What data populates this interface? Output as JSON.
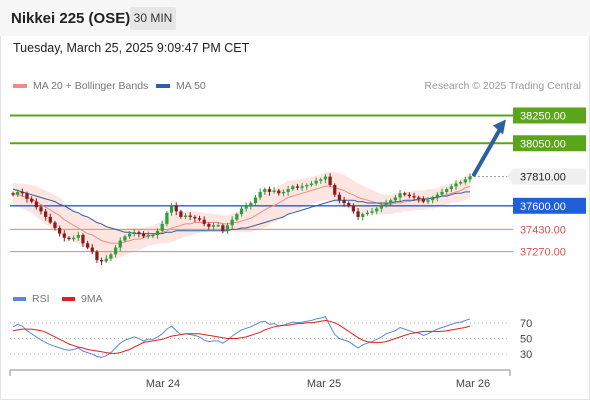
{
  "header": {
    "title": "Nikkei 225 (OSE)",
    "timeframe": "30 MIN",
    "timestamp": "Tuesday, March 25, 2025 9:09:47 PM CET"
  },
  "legend": {
    "ma20_label": "MA 20 + Bollinger Bands",
    "ma50_label": "MA 50",
    "credit": "Research © 2025 Trading Central"
  },
  "rsi_legend": {
    "rsi_label": "RSI",
    "ma9_label": "9MA"
  },
  "colors": {
    "ma20": "#f28b82",
    "ma50": "#2e5fa3",
    "bollinger_fill": "#fde0dd",
    "bull": "#2e9e3e",
    "bear": "#8b1a1a",
    "target": "#5ba51b",
    "pivot": "#1f5fd8",
    "support": "#f27d7d",
    "rsi": "#5b88d6",
    "rsi_ma": "#e02020"
  },
  "chart_data": [
    {
      "type": "candlestick",
      "title": "Nikkei 225 (OSE)",
      "timeframe": "30 MIN",
      "xlabel": "",
      "ylabel": "",
      "x_ticks": [
        "Mar 24",
        "Mar 25",
        "Mar 26"
      ],
      "ylim": [
        37095,
        38390
      ],
      "grid": false,
      "levels": [
        {
          "label": "38250.00",
          "value": 38250,
          "kind": "target"
        },
        {
          "label": "38050.00",
          "value": 38050,
          "kind": "target"
        },
        {
          "label": "37810.00",
          "value": 37810,
          "kind": "last"
        },
        {
          "label": "37600.00",
          "value": 37600,
          "kind": "pivot"
        },
        {
          "label": "37430.00",
          "value": 37430,
          "kind": "support"
        },
        {
          "label": "37270.00",
          "value": 37270,
          "kind": "support"
        }
      ],
      "closes": [
        37680,
        37700,
        37690,
        37650,
        37630,
        37590,
        37560,
        37520,
        37480,
        37440,
        37400,
        37370,
        37360,
        37370,
        37390,
        37330,
        37300,
        37270,
        37210,
        37200,
        37220,
        37250,
        37300,
        37350,
        37380,
        37400,
        37410,
        37400,
        37380,
        37390,
        37390,
        37420,
        37470,
        37550,
        37600,
        37560,
        37520,
        37530,
        37520,
        37510,
        37500,
        37470,
        37450,
        37460,
        37460,
        37420,
        37460,
        37500,
        37540,
        37580,
        37600,
        37620,
        37660,
        37700,
        37720,
        37700,
        37710,
        37690,
        37700,
        37720,
        37740,
        37730,
        37740,
        37750,
        37760,
        37780,
        37790,
        37810,
        37750,
        37680,
        37640,
        37620,
        37600,
        37560,
        37520,
        37540,
        37550,
        37560,
        37580,
        37600,
        37620,
        37640,
        37660,
        37690,
        37680,
        37670,
        37660,
        37650,
        37630,
        37640,
        37660,
        37680,
        37700,
        37720,
        37740,
        37760,
        37770,
        37790,
        37810
      ],
      "ma20": [
        37690,
        37680,
        37670,
        37660,
        37650,
        37630,
        37610,
        37590,
        37570,
        37550,
        37530,
        37500,
        37480,
        37460,
        37440,
        37420,
        37400,
        37390,
        37370,
        37350,
        37340,
        37330,
        37330,
        37330,
        37340,
        37350,
        37360,
        37360,
        37370,
        37380,
        37390,
        37400,
        37410,
        37420,
        37440,
        37450,
        37460,
        37470,
        37470,
        37480,
        37480,
        37480,
        37480,
        37480,
        37480,
        37470,
        37470,
        37480,
        37480,
        37490,
        37500,
        37510,
        37530,
        37550,
        37570,
        37590,
        37600,
        37620,
        37640,
        37660,
        37670,
        37680,
        37690,
        37700,
        37710,
        37720,
        37730,
        37740,
        37740,
        37730,
        37720,
        37710,
        37690,
        37680,
        37660,
        37650,
        37640,
        37630,
        37620,
        37610,
        37610,
        37610,
        37620,
        37620,
        37630,
        37630,
        37640,
        37640,
        37640,
        37650,
        37650,
        37660,
        37670,
        37680,
        37690,
        37700,
        37710,
        37730,
        37740
      ],
      "ma50": [
        37720,
        37710,
        37700,
        37690,
        37680,
        37670,
        37660,
        37650,
        37640,
        37630,
        37610,
        37600,
        37580,
        37560,
        37550,
        37530,
        37520,
        37500,
        37480,
        37470,
        37450,
        37440,
        37430,
        37420,
        37410,
        37410,
        37400,
        37400,
        37400,
        37400,
        37400,
        37400,
        37400,
        37410,
        37410,
        37420,
        37420,
        37420,
        37420,
        37420,
        37420,
        37420,
        37420,
        37420,
        37420,
        37420,
        37420,
        37430,
        37430,
        37440,
        37440,
        37450,
        37460,
        37470,
        37480,
        37490,
        37500,
        37510,
        37520,
        37540,
        37550,
        37560,
        37570,
        37580,
        37590,
        37600,
        37610,
        37620,
        37630,
        37640,
        37640,
        37640,
        37640,
        37640,
        37630,
        37630,
        37620,
        37620,
        37620,
        37620,
        37620,
        37620,
        37630,
        37630,
        37640,
        37640,
        37640,
        37650,
        37650,
        37650,
        37660,
        37660,
        37670,
        37670,
        37680,
        37690,
        37690,
        37700,
        37700
      ],
      "bollinger_width": [
        80,
        80,
        90,
        95,
        100,
        110,
        115,
        120,
        125,
        130,
        130,
        125,
        120,
        115,
        110,
        110,
        110,
        110,
        115,
        120,
        120,
        115,
        110,
        100,
        95,
        90,
        85,
        80,
        75,
        70,
        70,
        75,
        80,
        90,
        100,
        100,
        95,
        90,
        85,
        80,
        75,
        70,
        65,
        60,
        60,
        60,
        60,
        65,
        70,
        80,
        90,
        100,
        110,
        120,
        125,
        125,
        120,
        120,
        120,
        120,
        115,
        110,
        105,
        100,
        95,
        95,
        95,
        100,
        105,
        110,
        115,
        115,
        110,
        105,
        100,
        95,
        90,
        85,
        80,
        75,
        70,
        70,
        70,
        70,
        70,
        70,
        70,
        70,
        70,
        70,
        70,
        70,
        70,
        70,
        70,
        75,
        80,
        85,
        90
      ]
    },
    {
      "type": "line",
      "title": "RSI",
      "ylim": [
        20,
        80
      ],
      "y_ticks": [
        70,
        50,
        30
      ],
      "series": [
        {
          "name": "RSI",
          "values": [
            65,
            68,
            66,
            60,
            56,
            52,
            48,
            45,
            42,
            40,
            38,
            36,
            35,
            36,
            38,
            34,
            32,
            30,
            27,
            26,
            28,
            32,
            38,
            44,
            48,
            50,
            52,
            50,
            47,
            49,
            49,
            52,
            56,
            62,
            66,
            60,
            55,
            56,
            55,
            54,
            52,
            48,
            46,
            47,
            47,
            44,
            48,
            53,
            57,
            61,
            63,
            65,
            68,
            71,
            72,
            68,
            69,
            66,
            67,
            69,
            71,
            70,
            71,
            72,
            73,
            75,
            76,
            78,
            66,
            55,
            50,
            48,
            46,
            42,
            38,
            42,
            44,
            46,
            49,
            52,
            56,
            58,
            60,
            64,
            62,
            60,
            58,
            57,
            54,
            56,
            59,
            62,
            64,
            66,
            68,
            70,
            71,
            73,
            75
          ]
        },
        {
          "name": "9MA",
          "values": [
            60,
            61,
            62,
            62,
            62,
            61,
            60,
            58,
            55,
            52,
            49,
            46,
            43,
            41,
            39,
            38,
            36,
            35,
            34,
            33,
            32,
            31,
            31,
            32,
            34,
            36,
            39,
            42,
            45,
            46,
            47,
            48,
            49,
            51,
            53,
            54,
            55,
            56,
            56,
            56,
            56,
            55,
            54,
            53,
            52,
            51,
            50,
            50,
            50,
            51,
            52,
            54,
            56,
            58,
            61,
            63,
            65,
            66,
            67,
            67,
            68,
            69,
            69,
            70,
            70,
            71,
            72,
            73,
            72,
            70,
            67,
            63,
            59,
            55,
            51,
            48,
            46,
            45,
            45,
            45,
            46,
            48,
            50,
            52,
            54,
            56,
            57,
            58,
            59,
            59,
            59,
            59,
            59,
            60,
            61,
            62,
            63,
            64,
            66
          ]
        }
      ]
    }
  ]
}
